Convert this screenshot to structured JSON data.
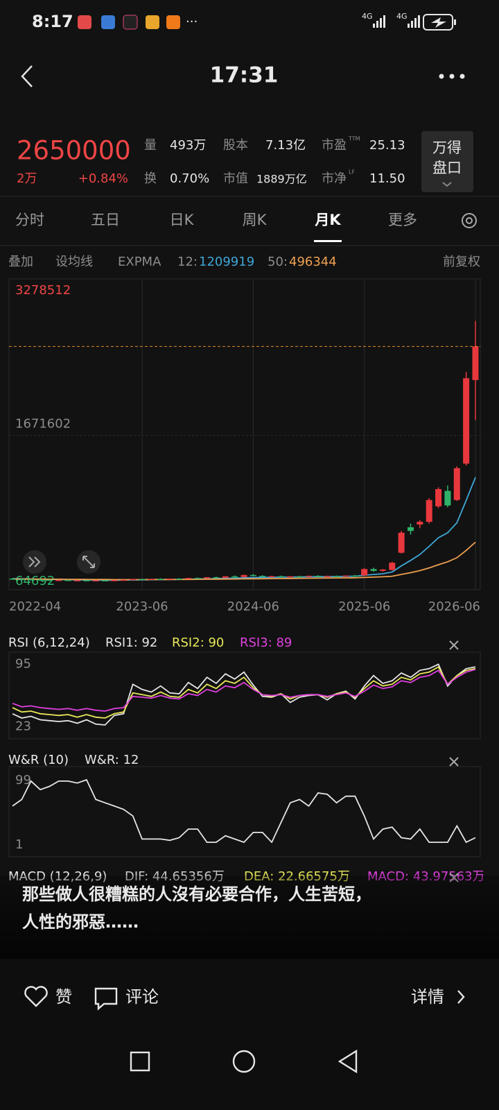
{
  "status": {
    "time": "8:17",
    "more": "···",
    "net1": "4G",
    "net2": "4G"
  },
  "header": {
    "time": "17:31"
  },
  "quote": {
    "price": 2650000,
    "change": "2万",
    "pct": "+0.84%",
    "volume_label": "量",
    "volume": "493万",
    "shares_label": "股本",
    "shares": "7.13亿",
    "pe_label": "市盈",
    "pe_sup": "TTM",
    "pe": "25.13",
    "turnover_label": "换",
    "turnover": "0.70%",
    "mcap_label": "市值",
    "mcap": "1889万亿",
    "pb_label": "市净",
    "pb_sup": "LF",
    "pb": "11.50",
    "button": [
      "万得",
      "盘口"
    ]
  },
  "tabs": {
    "items": [
      "分时",
      "五日",
      "日K",
      "周K",
      "月K",
      "更多"
    ],
    "active": 4
  },
  "toolbar": {
    "overlay": "叠加",
    "ma": "设均线",
    "indicator": "EXPMA",
    "e12_label": "12:",
    "e12": "1209919",
    "e50_label": "50:",
    "e50": "496344",
    "adjust": "前复权"
  },
  "chart_data": [
    {
      "type": "candlestick",
      "categories": [
        "2022-04",
        null,
        null,
        null,
        null,
        null,
        null,
        null,
        null,
        null,
        null,
        null,
        null,
        null,
        "2023-06",
        null,
        null,
        null,
        null,
        null,
        null,
        null,
        null,
        null,
        null,
        null,
        "2024-06",
        null,
        null,
        null,
        null,
        null,
        null,
        null,
        null,
        null,
        null,
        null,
        "2025-06",
        null,
        null,
        null,
        null,
        null,
        null,
        null,
        null,
        null,
        null,
        null,
        "2026-06"
      ],
      "ylim": [
        64692,
        3278512
      ],
      "yticks": [
        3278512,
        1671602,
        64692
      ],
      "up_color": "#e8383d",
      "down_color": "#2fb36a",
      "candles": [
        [
          95000.0,
          102000.0,
          86000.0,
          90000.0
        ],
        [
          90000.0,
          96000.0,
          84000.0,
          88000.0
        ],
        [
          88000.0,
          92000.0,
          80000.0,
          85000.0
        ],
        [
          85000.0,
          90000.0,
          78000.0,
          82000.0
        ],
        [
          82000.0,
          86000.0,
          75000.0,
          78000.0
        ],
        [
          78000.0,
          84000.0,
          74000.0,
          80000.0
        ],
        [
          80000.0,
          83000.0,
          72000.0,
          75000.0
        ],
        [
          75000.0,
          80000.0,
          70000.0,
          77000.0
        ],
        [
          77000.0,
          81000.0,
          72000.0,
          74000.0
        ],
        [
          74000.0,
          78000.0,
          70000.0,
          76000.0
        ],
        [
          76000.0,
          80000.0,
          72000.0,
          73000.0
        ],
        [
          73000.0,
          79000.0,
          71000.0,
          78000.0
        ],
        [
          78000.0,
          84000.0,
          76000.0,
          82000.0
        ],
        [
          82000.0,
          92000.0,
          80000.0,
          90000.0
        ],
        [
          90000.0,
          95000.0,
          84000.0,
          86000.0
        ],
        [
          86000.0,
          94000.0,
          84000.0,
          92000.0
        ],
        [
          92000.0,
          98000.0,
          86000.0,
          88000.0
        ],
        [
          88000.0,
          96000.0,
          85000.0,
          95000.0
        ],
        [
          95000.0,
          100000.0,
          88000.0,
          90000.0
        ],
        [
          90000.0,
          104000.0,
          88000.0,
          102000.0
        ],
        [
          102000.0,
          108000.0,
          95000.0,
          98000.0
        ],
        [
          98000.0,
          112000.0,
          96000.0,
          110000.0
        ],
        [
          110000.0,
          118000.0,
          100000.0,
          104000.0
        ],
        [
          104000.0,
          122000.0,
          102000.0,
          120000.0
        ],
        [
          120000.0,
          130000.0,
          108000.0,
          112000.0
        ],
        [
          112000.0,
          138000.0,
          110000.0,
          135000.0
        ],
        [
          135000.0,
          145000.0,
          120000.0,
          125000.0
        ],
        [
          125000.0,
          132000.0,
          112000.0,
          118000.0
        ],
        [
          118000.0,
          126000.0,
          110000.0,
          122000.0
        ],
        [
          122000.0,
          128000.0,
          112000.0,
          115000.0
        ],
        [
          115000.0,
          124000.0,
          108000.0,
          120000.0
        ],
        [
          120000.0,
          126000.0,
          112000.0,
          116000.0
        ],
        [
          116000.0,
          130000.0,
          114000.0,
          126000.0
        ],
        [
          126000.0,
          132000.0,
          116000.0,
          119000.0
        ],
        [
          119000.0,
          128000.0,
          115000.0,
          124000.0
        ],
        [
          124000.0,
          130000.0,
          117000.0,
          120000.0
        ],
        [
          120000.0,
          132000.0,
          118000.0,
          128000.0
        ],
        [
          128000.0,
          136000.0,
          122000.0,
          126000.0
        ],
        [
          130000.0,
          210000.0,
          125000.0,
          200000.0
        ],
        [
          200000.0,
          215000.0,
          170000.0,
          180000.0
        ],
        [
          180000.0,
          200000.0,
          170000.0,
          195000.0
        ],
        [
          190000.0,
          280000.0,
          185000.0,
          270000.0
        ],
        [
          380000.0,
          620000.0,
          370000.0,
          600000.0
        ],
        [
          660000.0,
          700000.0,
          580000.0,
          620000.0
        ],
        [
          690000.0,
          740000.0,
          650000.0,
          720000.0
        ],
        [
          720000.0,
          980000.0,
          700000.0,
          960000.0
        ],
        [
          890000.0,
          1100000.0,
          870000.0,
          1080000.0
        ],
        [
          1060000.0,
          1120000.0,
          880000.0,
          900000.0
        ],
        [
          960000.0,
          1330000.0,
          950000.0,
          1310000.0
        ],
        [
          1360000.0,
          2370000.0,
          1340000.0,
          2300000.0
        ],
        [
          2280000.0,
          2930000.0,
          1840000.0,
          2650000
        ]
      ],
      "series": [
        {
          "name": "12",
          "color": "#3fa7d6",
          "values": [
            95000.0,
            93000.0,
            91000.0,
            89000.0,
            87000.0,
            85000.0,
            83000.0,
            81000.0,
            80000.0,
            79000.0,
            78000.0,
            78000.0,
            79000.0,
            80000.0,
            81000.0,
            83000.0,
            84000.0,
            85000.0,
            86000.0,
            88000.0,
            90000.0,
            93000.0,
            95000.0,
            98000.0,
            100000.0,
            104000.0,
            107000.0,
            108000.0,
            110000.0,
            111000.0,
            112000.0,
            113000.0,
            115000.0,
            116000.0,
            117000.0,
            118000.0,
            120000.0,
            121000.0,
            133000.0,
            140000.0,
            149000.0,
            168000.0,
            235000.0,
            295000.0,
            360000.0,
            450000.0,
            545000.0,
            600000.0,
            710000.0,
            955000.0,
            1209919
          ]
        },
        {
          "name": "50",
          "color": "#f0a050",
          "values": [
            90000.0,
            90000.0,
            89000.0,
            89000.0,
            88000.0,
            88000.0,
            87000.0,
            86000.0,
            86000.0,
            85000.0,
            85000.0,
            84000.0,
            84000.0,
            84000.0,
            84000.0,
            85000.0,
            85000.0,
            85000.0,
            86000.0,
            86000.0,
            87000.0,
            88000.0,
            89000.0,
            90000.0,
            91000.0,
            92000.0,
            93000.0,
            94000.0,
            95000.0,
            96000.0,
            97000.0,
            98000.0,
            99000.0,
            100000.0,
            101000.0,
            102000.0,
            103000.0,
            104000.0,
            108000.0,
            111000.0,
            115000.0,
            121000.0,
            141000.0,
            160000.0,
            183000.0,
            213000.0,
            248000.0,
            280000.0,
            325000.0,
            405000.0,
            496344
          ]
        }
      ]
    },
    {
      "type": "line",
      "title": "RSI (6,12,24)",
      "ylim": [
        9,
        109
      ],
      "yticks": [
        95,
        23
      ],
      "series": [
        {
          "name": "RSI1: 92",
          "color": "#e6e6e6",
          "values": [
            38,
            33,
            35,
            31,
            30,
            29,
            30,
            27,
            31,
            26,
            25,
            36,
            38,
            72,
            66,
            63,
            70,
            62,
            61,
            74,
            67,
            80,
            73,
            84,
            78,
            86,
            71,
            58,
            57,
            61,
            51,
            57,
            59,
            60,
            54,
            61,
            64,
            55,
            70,
            82,
            73,
            76,
            85,
            80,
            88,
            90,
            95,
            70,
            82,
            90,
            92
          ]
        },
        {
          "name": "RSI2: 90",
          "color": "#e8e85a",
          "values": [
            45,
            40,
            41,
            38,
            37,
            36,
            37,
            34,
            37,
            34,
            33,
            38,
            40,
            62,
            60,
            58,
            63,
            58,
            57,
            66,
            62,
            72,
            67,
            76,
            73,
            80,
            68,
            60,
            58,
            61,
            55,
            59,
            60,
            60,
            57,
            61,
            63,
            57,
            67,
            76,
            70,
            72,
            80,
            77,
            84,
            86,
            92,
            72,
            82,
            88,
            90
          ]
        },
        {
          "name": "RSI3: 89",
          "color": "#e040e0",
          "values": [
            50,
            46,
            47,
            45,
            44,
            43,
            44,
            42,
            44,
            42,
            41,
            44,
            45,
            58,
            57,
            56,
            59,
            56,
            55,
            61,
            59,
            66,
            63,
            70,
            68,
            74,
            66,
            60,
            59,
            60,
            57,
            59,
            60,
            60,
            58,
            60,
            62,
            58,
            64,
            71,
            67,
            69,
            76,
            74,
            80,
            82,
            88,
            72,
            80,
            86,
            89
          ]
        }
      ]
    },
    {
      "type": "line",
      "title": "W&R (10)",
      "ylim": [
        -17,
        120
      ],
      "yticks": [
        99,
        1
      ],
      "series": [
        {
          "name": "W&R: 12",
          "color": "#e6e6e6",
          "values": [
            60,
            70,
            98,
            85,
            90,
            98,
            98,
            95,
            100,
            70,
            65,
            60,
            55,
            45,
            10,
            10,
            10,
            8,
            12,
            25,
            25,
            5,
            5,
            15,
            10,
            5,
            20,
            20,
            5,
            35,
            65,
            70,
            60,
            80,
            78,
            65,
            75,
            75,
            45,
            10,
            25,
            28,
            12,
            10,
            25,
            5,
            5,
            5,
            30,
            5,
            12
          ]
        }
      ]
    },
    {
      "type": "line",
      "title": "MACD (12,26,9)",
      "series": [
        {
          "name": "DIF: 44.65356万",
          "color": "#cfcfcf"
        },
        {
          "name": "DEA: 22.66575万",
          "color": "#e8e85a"
        },
        {
          "name": "MACD: 43.97563万",
          "color": "#e040e0"
        }
      ]
    }
  ],
  "caption": [
    "那些做人很糟糕的人沒有必要合作，人生苦短，",
    "人性的邪惡……"
  ],
  "footer": {
    "like": "赞",
    "comment": "评论",
    "details": "详情"
  }
}
